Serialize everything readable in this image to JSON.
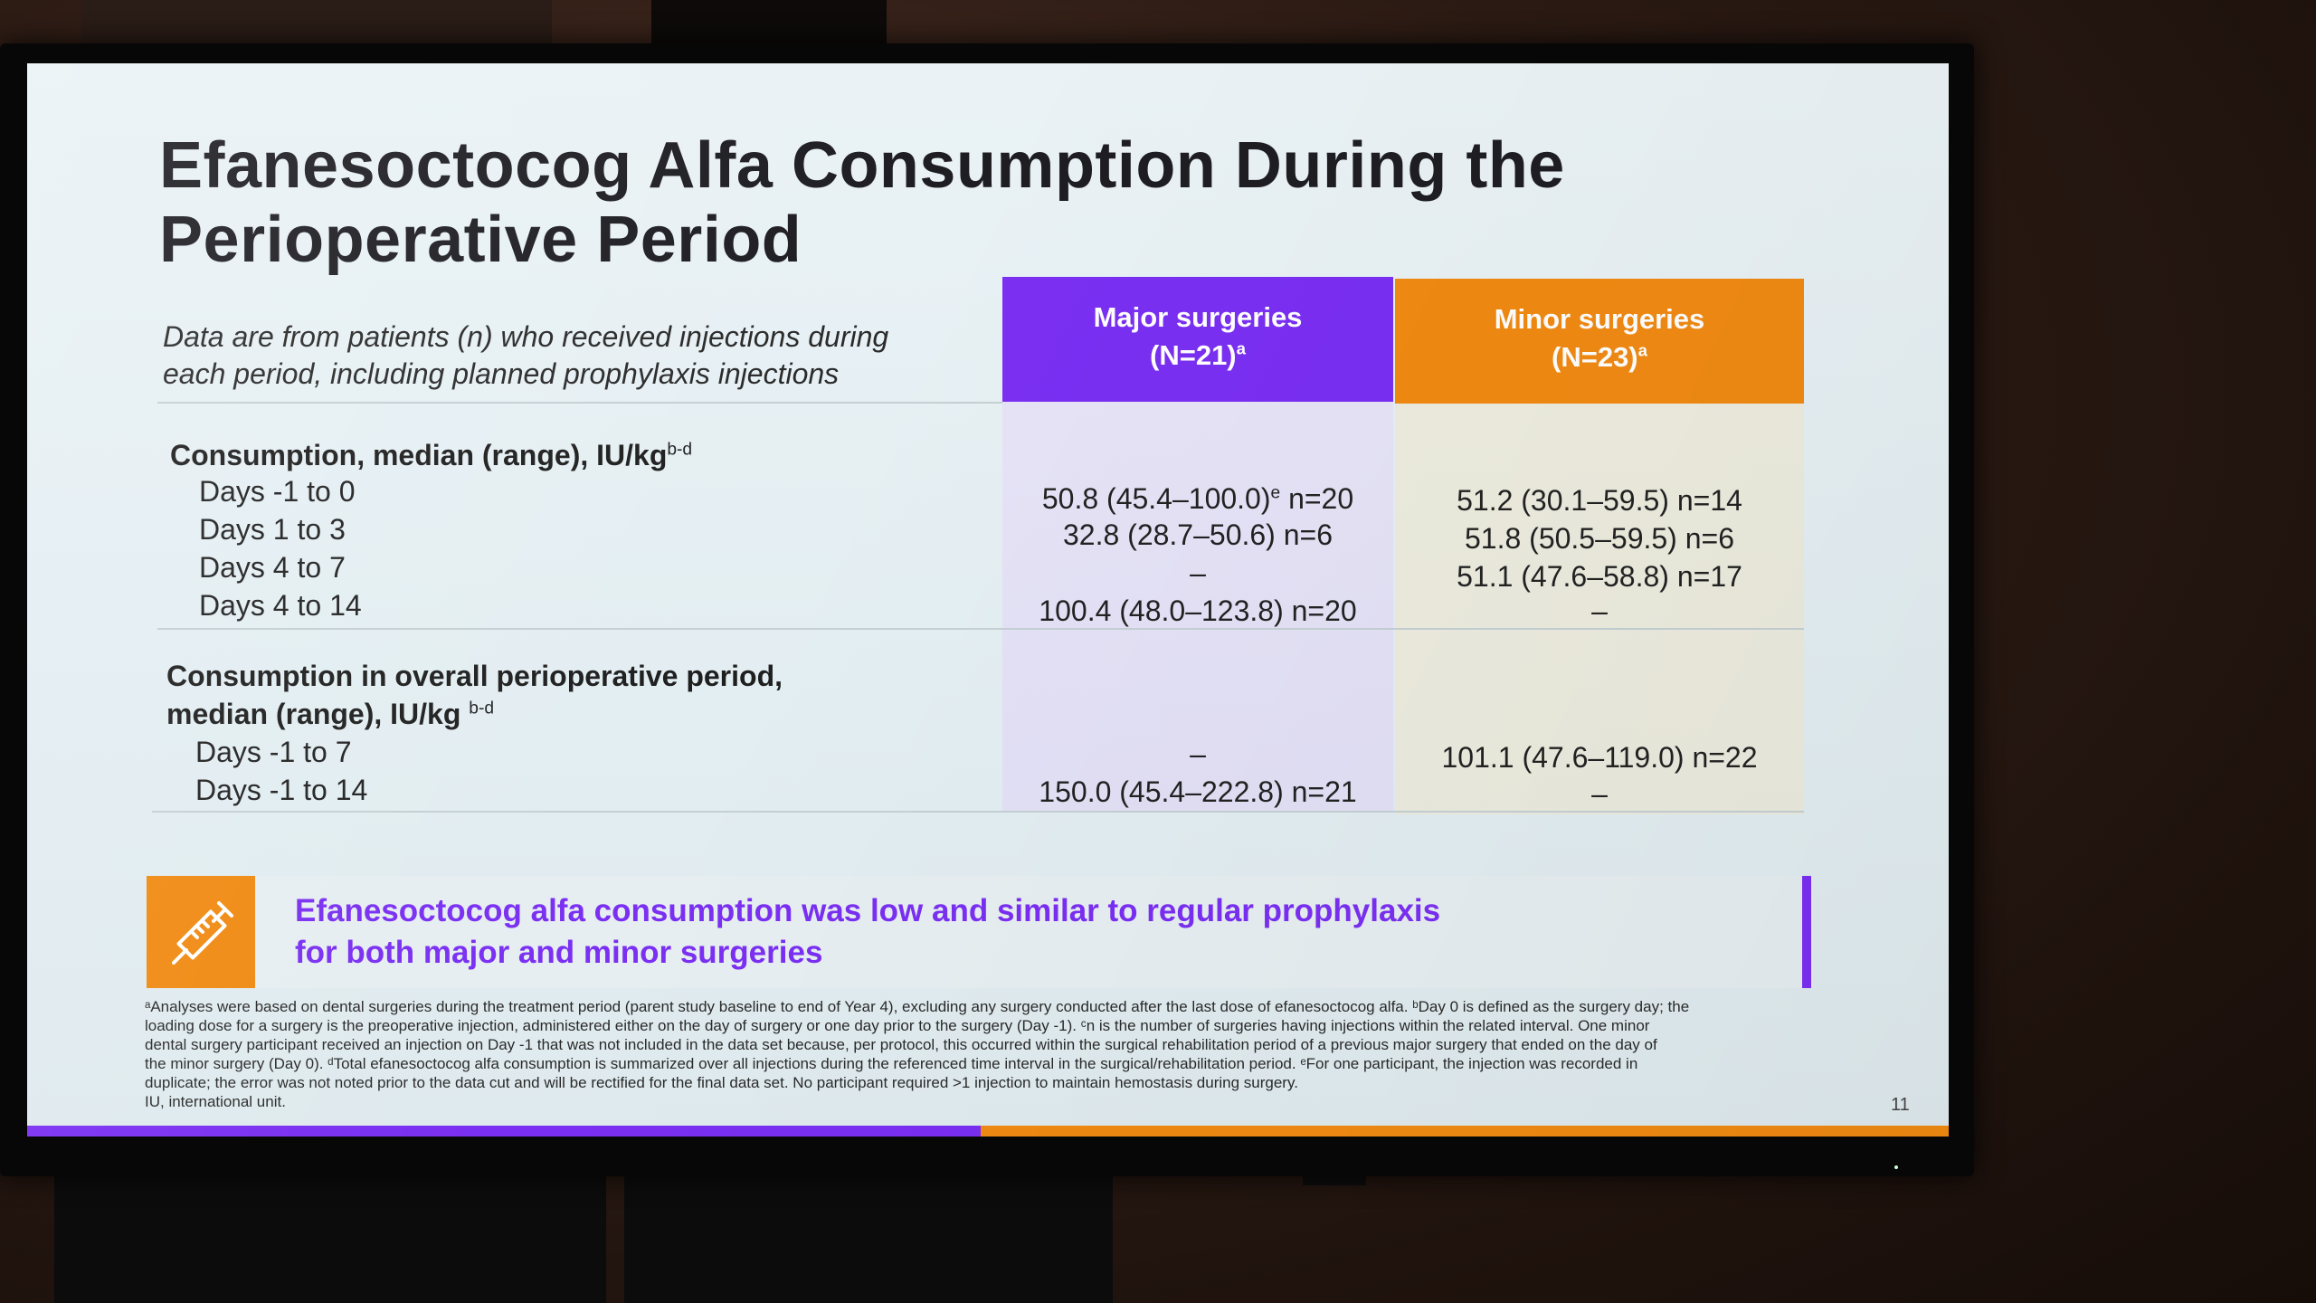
{
  "slide": {
    "title_line1": "Efanesoctocog Alfa Consumption During the",
    "title_line2": "Perioperative Period",
    "intro_line1": "Data are from patients (n) who received injections during",
    "intro_line2": "each period, including planned prophylaxis injections",
    "columns": {
      "major_line1": "Major surgeries",
      "major_line2": "(N=21)",
      "major_sup": "a",
      "minor_line1": "Minor surgeries",
      "minor_line2": "(N=23)",
      "minor_sup": "a"
    },
    "section1": {
      "label": "Consumption, median (range), IU/kg",
      "label_sup": "b-d",
      "rows": [
        {
          "label": "Days -1 to 0",
          "major": "50.8 (45.4–100.0)",
          "major_sup": "e",
          "major_n": " n=20",
          "minor": "51.2 (30.1–59.5) n=14"
        },
        {
          "label": "Days 1 to 3",
          "major": "32.8 (28.7–50.6) n=6",
          "minor": "51.8 (50.5–59.5) n=6"
        },
        {
          "label": "Days 4 to 7",
          "major": "–",
          "minor": "51.1 (47.6–58.8) n=17"
        },
        {
          "label": "Days 4 to 14",
          "major": "100.4 (48.0–123.8) n=20",
          "minor": "–"
        }
      ]
    },
    "section2": {
      "label_line1": "Consumption in overall perioperative period,",
      "label_line2": "median (range), IU/kg ",
      "label_sup": "b-d",
      "rows": [
        {
          "label": "Days -1 to 7",
          "major": "–",
          "minor": "101.1 (47.6–119.0) n=22"
        },
        {
          "label": "Days -1 to 14",
          "major": "150.0 (45.4–222.8) n=21",
          "minor": "–"
        }
      ]
    },
    "callout": {
      "icon": "syringe-icon",
      "line1": "Efanesoctocog alfa consumption was low and similar to regular prophylaxis",
      "line2": "for both major and minor surgeries"
    },
    "footnotes": [
      "ᵃAnalyses were based on dental surgeries during the treatment period (parent study baseline to end of Year 4), excluding  any surgery conducted after the last dose of efanesoctocog alfa. ᵇDay 0 is defined as the surgery day; the",
      "loading dose for a surgery is the preoperative injection, administered either on the day of surgery or one day prior to the surgery (Day -1). ᶜn is the number of surgeries having injections within the related interval. One minor",
      "dental surgery participant received an injection on Day -1 that was not included in the data set because, per protocol, this occurred within the surgical rehabilitation period of a previous major surgery that ended on the day of",
      "the minor surgery (Day 0). ᵈTotal efanesoctocog alfa consumption is summarized over all injections during the referenced time interval in the surgical/rehabilitation period. ᵉFor one participant, the injection was recorded in",
      "duplicate; the error was not noted prior to the data cut and will be rectified for the final data set. No participant required >1 injection to maintain hemostasis during surgery.",
      "IU, international unit."
    ],
    "page_number": "11",
    "colors": {
      "purple": "#7a2ff2",
      "orange": "#f08a12",
      "title": "#1d1d22"
    }
  }
}
